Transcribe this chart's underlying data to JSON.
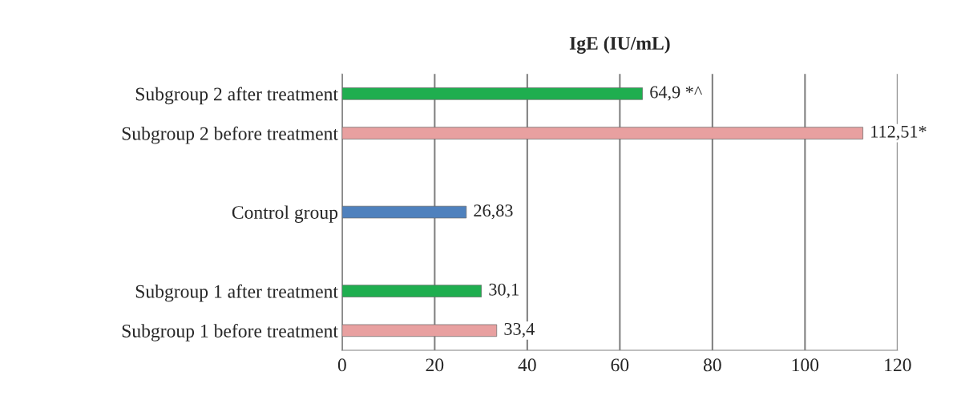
{
  "chart_data": {
    "type": "bar",
    "orientation": "horizontal",
    "title": "IgE (IU/mL)",
    "categories": [
      "Subgroup 2 after treatment",
      "Subgroup 2 before treatment",
      null,
      "Control group",
      null,
      "Subgroup 1 after treatment",
      "Subgroup 1 before treatment"
    ],
    "values": [
      64.9,
      112.51,
      null,
      26.83,
      null,
      30.1,
      33.4
    ],
    "colors": [
      "#1fae4f",
      "#e8a0a0",
      null,
      "#4f81bd",
      null,
      "#1fae4f",
      "#e8a0a0"
    ],
    "value_labels": [
      "64,9 *^",
      "112,51*",
      null,
      "26,83",
      null,
      "30,1",
      "33,4"
    ],
    "xlim": [
      0,
      120
    ],
    "xticks": [
      0,
      20,
      40,
      60,
      80,
      100,
      120
    ],
    "grid": "x"
  }
}
